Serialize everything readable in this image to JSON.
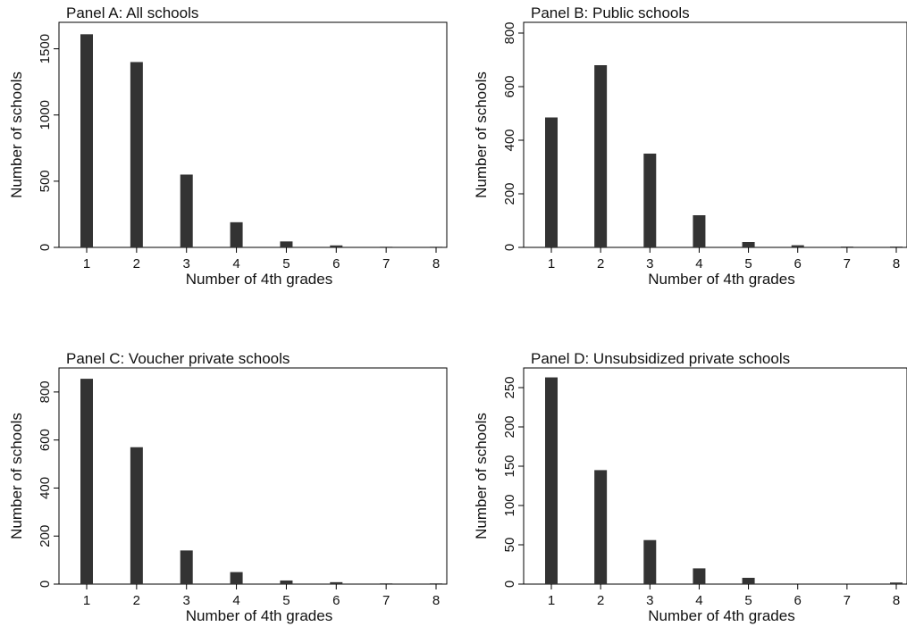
{
  "chart_data": [
    {
      "type": "bar",
      "title": "Panel A: All schools",
      "xlabel": "Number of 4th grades",
      "ylabel": "Number of schools",
      "categories": [
        "1",
        "2",
        "3",
        "4",
        "5",
        "6",
        "7",
        "8"
      ],
      "values": [
        1610,
        1400,
        550,
        190,
        45,
        15,
        5,
        5
      ],
      "ylim": [
        0,
        1700
      ],
      "yticks": [
        "0",
        "500",
        "1000",
        "1500"
      ],
      "ytick_values": [
        0,
        500,
        1000,
        1500
      ],
      "bar_color": "#333333",
      "grid": false
    },
    {
      "type": "bar",
      "title": "Panel B: Public schools",
      "xlabel": "Number of 4th grades",
      "ylabel": "Number of schools",
      "categories": [
        "1",
        "2",
        "3",
        "4",
        "5",
        "6",
        "7",
        "8"
      ],
      "values": [
        485,
        680,
        350,
        120,
        20,
        8,
        3,
        3
      ],
      "ylim": [
        0,
        840
      ],
      "yticks": [
        "0",
        "200",
        "400",
        "600",
        "800"
      ],
      "ytick_values": [
        0,
        200,
        400,
        600,
        800
      ],
      "bar_color": "#333333",
      "grid": false
    },
    {
      "type": "bar",
      "title": "Panel C: Voucher private schools",
      "xlabel": "Number of 4th grades",
      "ylabel": "Number of schools",
      "categories": [
        "1",
        "2",
        "3",
        "4",
        "5",
        "6",
        "7",
        "8"
      ],
      "values": [
        855,
        570,
        140,
        50,
        15,
        8,
        3,
        3
      ],
      "ylim": [
        0,
        900
      ],
      "yticks": [
        "0",
        "200",
        "400",
        "600",
        "800"
      ],
      "ytick_values": [
        0,
        200,
        400,
        600,
        800
      ],
      "bar_color": "#333333",
      "grid": false
    },
    {
      "type": "bar",
      "title": "Panel D: Unsubsidized private schools",
      "xlabel": "Number of 4th grades",
      "ylabel": "Number of schools",
      "categories": [
        "1",
        "2",
        "3",
        "4",
        "5",
        "6",
        "7",
        "8"
      ],
      "values": [
        263,
        145,
        56,
        20,
        8,
        0,
        0,
        2
      ],
      "ylim": [
        0,
        275
      ],
      "yticks": [
        "0",
        "50",
        "100",
        "150",
        "200",
        "250"
      ],
      "ytick_values": [
        0,
        50,
        100,
        150,
        200,
        250
      ],
      "bar_color": "#333333",
      "grid": false
    }
  ]
}
